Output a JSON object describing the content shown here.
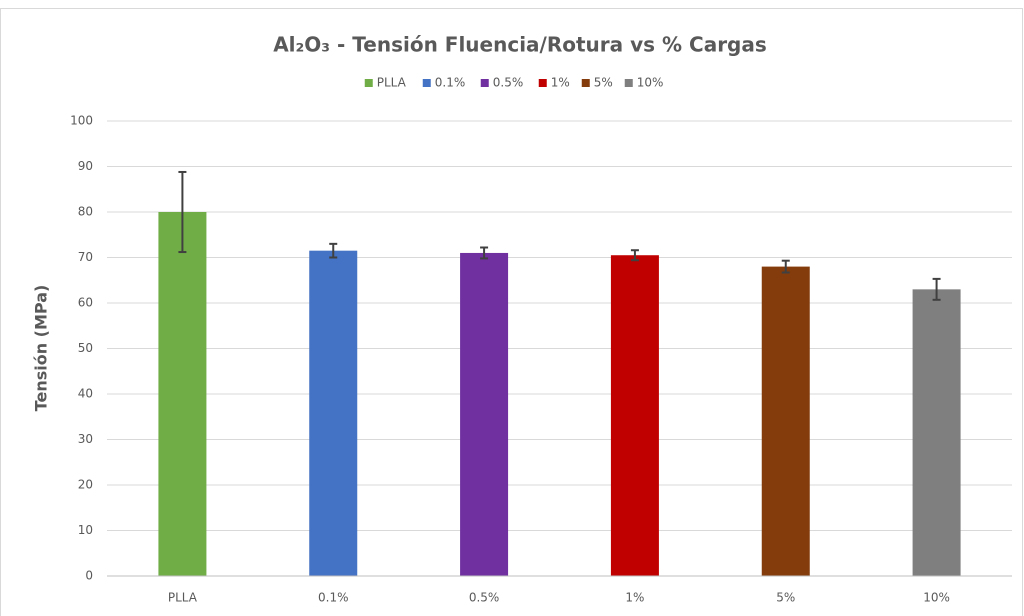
{
  "chart_data": {
    "type": "bar",
    "title": "Al₂O₃ - Tensión Fluencia/Rotura vs % Cargas",
    "y_label": "Tensión (MPa)",
    "categories": [
      "PLLA",
      "0.1%",
      "0.5%",
      "1%",
      "5%",
      "10%"
    ],
    "values": [
      80,
      71.5,
      71,
      70.5,
      68,
      63
    ],
    "errors": [
      8.8,
      1.5,
      1.2,
      1.1,
      1.3,
      2.3
    ],
    "colors": [
      "#70ad47",
      "#4472c4",
      "#7030a0",
      "#c00000",
      "#843c0c",
      "#7f7f7f"
    ],
    "ylim": [
      0,
      100
    ],
    "yticks": [
      0,
      10,
      20,
      30,
      40,
      50,
      60,
      70,
      80,
      90,
      100
    ],
    "grid": true,
    "legend": "top"
  }
}
